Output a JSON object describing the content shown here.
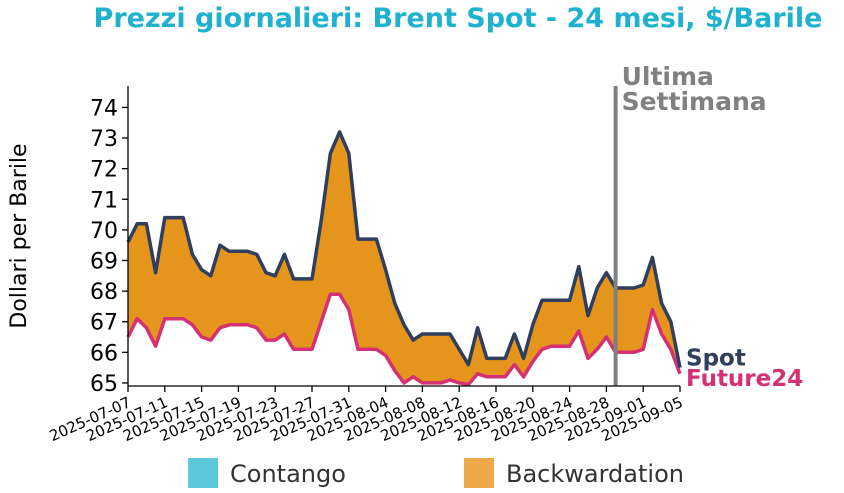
{
  "chart_data": {
    "type": "area",
    "title": "Prezzi giornalieri: Brent Spot - 24 mesi, $/Barile",
    "ylabel": "Dollari per Barile",
    "ylim": [
      64.9,
      74.7
    ],
    "yticks": [
      65,
      66,
      67,
      68,
      69,
      70,
      71,
      72,
      73,
      74
    ],
    "xlim": [
      "2025-07-07",
      "2025-09-05"
    ],
    "xticks": [
      "2025-07-07",
      "2025-07-11",
      "2025-07-15",
      "2025-07-19",
      "2025-07-23",
      "2025-07-27",
      "2025-07-31",
      "2025-08-04",
      "2025-08-08",
      "2025-08-12",
      "2025-08-16",
      "2025-08-20",
      "2025-08-24",
      "2025-08-28",
      "2025-09-01",
      "2025-09-05"
    ],
    "series": [
      {
        "name": "Spot",
        "color": "#2f3e5c",
        "points": [
          [
            "2025-07-07",
            69.6
          ],
          [
            "2025-07-08",
            70.2
          ],
          [
            "2025-07-09",
            70.2
          ],
          [
            "2025-07-10",
            68.6
          ],
          [
            "2025-07-11",
            70.4
          ],
          [
            "2025-07-12",
            70.4
          ],
          [
            "2025-07-13",
            70.4
          ],
          [
            "2025-07-14",
            69.2
          ],
          [
            "2025-07-15",
            68.7
          ],
          [
            "2025-07-16",
            68.5
          ],
          [
            "2025-07-17",
            69.5
          ],
          [
            "2025-07-18",
            69.3
          ],
          [
            "2025-07-19",
            69.3
          ],
          [
            "2025-07-20",
            69.3
          ],
          [
            "2025-07-21",
            69.2
          ],
          [
            "2025-07-22",
            68.6
          ],
          [
            "2025-07-23",
            68.5
          ],
          [
            "2025-07-24",
            69.2
          ],
          [
            "2025-07-25",
            68.4
          ],
          [
            "2025-07-26",
            68.4
          ],
          [
            "2025-07-27",
            68.4
          ],
          [
            "2025-07-28",
            70.3
          ],
          [
            "2025-07-29",
            72.5
          ],
          [
            "2025-07-30",
            73.2
          ],
          [
            "2025-07-31",
            72.5
          ],
          [
            "2025-08-01",
            69.7
          ],
          [
            "2025-08-02",
            69.7
          ],
          [
            "2025-08-03",
            69.7
          ],
          [
            "2025-08-04",
            68.7
          ],
          [
            "2025-08-05",
            67.6
          ],
          [
            "2025-08-06",
            66.9
          ],
          [
            "2025-08-07",
            66.4
          ],
          [
            "2025-08-08",
            66.6
          ],
          [
            "2025-08-09",
            66.6
          ],
          [
            "2025-08-10",
            66.6
          ],
          [
            "2025-08-11",
            66.6
          ],
          [
            "2025-08-12",
            66.1
          ],
          [
            "2025-08-13",
            65.6
          ],
          [
            "2025-08-14",
            66.8
          ],
          [
            "2025-08-15",
            65.8
          ],
          [
            "2025-08-16",
            65.8
          ],
          [
            "2025-08-17",
            65.8
          ],
          [
            "2025-08-18",
            66.6
          ],
          [
            "2025-08-19",
            65.8
          ],
          [
            "2025-08-20",
            66.9
          ],
          [
            "2025-08-21",
            67.7
          ],
          [
            "2025-08-22",
            67.7
          ],
          [
            "2025-08-23",
            67.7
          ],
          [
            "2025-08-24",
            67.7
          ],
          [
            "2025-08-25",
            68.8
          ],
          [
            "2025-08-26",
            67.2
          ],
          [
            "2025-08-27",
            68.1
          ],
          [
            "2025-08-28",
            68.6
          ],
          [
            "2025-08-29",
            68.1
          ],
          [
            "2025-08-30",
            68.1
          ],
          [
            "2025-08-31",
            68.1
          ],
          [
            "2025-09-01",
            68.2
          ],
          [
            "2025-09-02",
            69.1
          ],
          [
            "2025-09-03",
            67.6
          ],
          [
            "2025-09-04",
            67.0
          ],
          [
            "2025-09-05",
            65.5
          ]
        ]
      },
      {
        "name": "Future24",
        "color": "#d63075",
        "points": [
          [
            "2025-07-07",
            66.5
          ],
          [
            "2025-07-08",
            67.1
          ],
          [
            "2025-07-09",
            66.8
          ],
          [
            "2025-07-10",
            66.2
          ],
          [
            "2025-07-11",
            67.1
          ],
          [
            "2025-07-12",
            67.1
          ],
          [
            "2025-07-13",
            67.1
          ],
          [
            "2025-07-14",
            66.9
          ],
          [
            "2025-07-15",
            66.5
          ],
          [
            "2025-07-16",
            66.4
          ],
          [
            "2025-07-17",
            66.8
          ],
          [
            "2025-07-18",
            66.9
          ],
          [
            "2025-07-19",
            66.9
          ],
          [
            "2025-07-20",
            66.9
          ],
          [
            "2025-07-21",
            66.8
          ],
          [
            "2025-07-22",
            66.4
          ],
          [
            "2025-07-23",
            66.4
          ],
          [
            "2025-07-24",
            66.6
          ],
          [
            "2025-07-25",
            66.1
          ],
          [
            "2025-07-26",
            66.1
          ],
          [
            "2025-07-27",
            66.1
          ],
          [
            "2025-07-28",
            67.0
          ],
          [
            "2025-07-29",
            67.9
          ],
          [
            "2025-07-30",
            67.9
          ],
          [
            "2025-07-31",
            67.4
          ],
          [
            "2025-08-01",
            66.1
          ],
          [
            "2025-08-02",
            66.1
          ],
          [
            "2025-08-03",
            66.1
          ],
          [
            "2025-08-04",
            65.9
          ],
          [
            "2025-08-05",
            65.4
          ],
          [
            "2025-08-06",
            65.0
          ],
          [
            "2025-08-07",
            65.2
          ],
          [
            "2025-08-08",
            65.0
          ],
          [
            "2025-08-09",
            65.0
          ],
          [
            "2025-08-10",
            65.0
          ],
          [
            "2025-08-11",
            65.1
          ],
          [
            "2025-08-12",
            65.0
          ],
          [
            "2025-08-13",
            64.95
          ],
          [
            "2025-08-14",
            65.3
          ],
          [
            "2025-08-15",
            65.2
          ],
          [
            "2025-08-16",
            65.2
          ],
          [
            "2025-08-17",
            65.2
          ],
          [
            "2025-08-18",
            65.6
          ],
          [
            "2025-08-19",
            65.2
          ],
          [
            "2025-08-20",
            65.7
          ],
          [
            "2025-08-21",
            66.1
          ],
          [
            "2025-08-22",
            66.2
          ],
          [
            "2025-08-23",
            66.2
          ],
          [
            "2025-08-24",
            66.2
          ],
          [
            "2025-08-25",
            66.7
          ],
          [
            "2025-08-26",
            65.8
          ],
          [
            "2025-08-27",
            66.1
          ],
          [
            "2025-08-28",
            66.5
          ],
          [
            "2025-08-29",
            66.0
          ],
          [
            "2025-08-30",
            66.0
          ],
          [
            "2025-08-31",
            66.0
          ],
          [
            "2025-09-01",
            66.1
          ],
          [
            "2025-09-02",
            67.4
          ],
          [
            "2025-09-03",
            66.6
          ],
          [
            "2025-09-04",
            66.1
          ],
          [
            "2025-09-05",
            65.3
          ]
        ]
      }
    ],
    "legend": {
      "placement": "bottom",
      "items": [
        {
          "label": "Contango",
          "color": "#5bc8dc"
        },
        {
          "label": "Backwardation",
          "color": "#eeaa4a"
        }
      ]
    },
    "fill_color": "#e5951c",
    "vline": {
      "date": "2025-08-29",
      "label_line1": "Ultima",
      "label_line2": "Settimana",
      "color": "#808080"
    },
    "colors": {
      "title": "#1fb2cf",
      "spot": "#2f3e5c",
      "future": "#d63075",
      "annotation": "#808080"
    },
    "grid": false
  }
}
